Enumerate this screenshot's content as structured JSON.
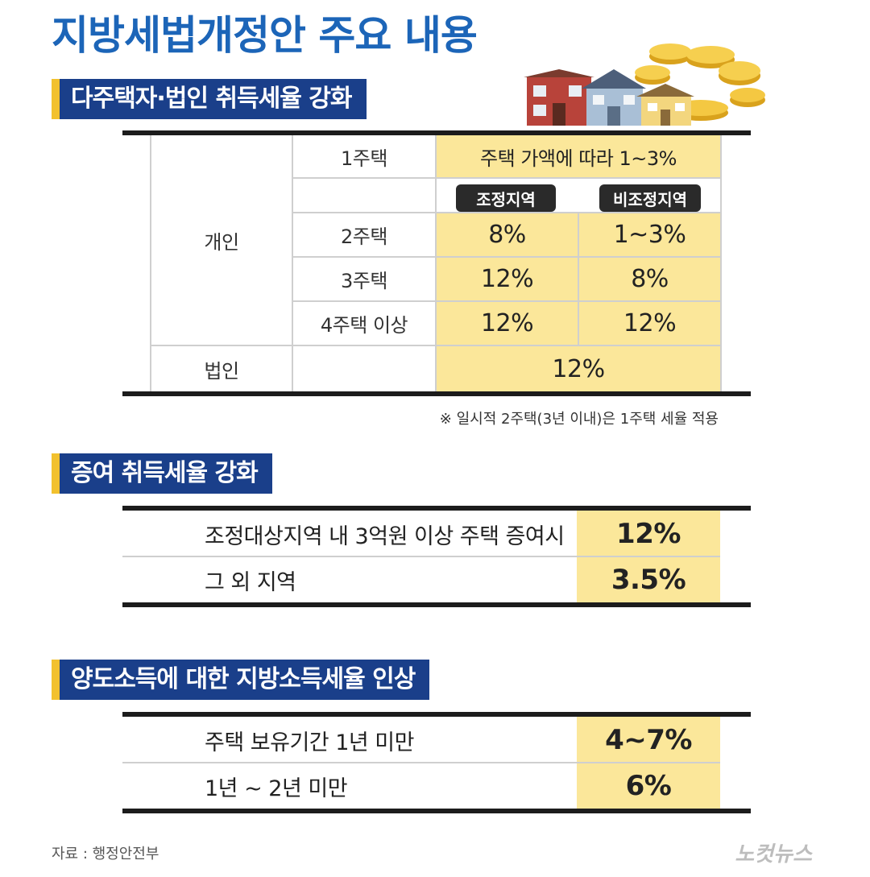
{
  "title": "지방세법개정안 주요 내용",
  "section1": {
    "heading": "다주택자·법인 취득세율 강화",
    "row_labels": {
      "individual": "개인",
      "corporate": "법인",
      "one_house": "1주택",
      "two_houses": "2주택",
      "three_houses": "3주택",
      "four_plus": "4주택 이상"
    },
    "one_house_rate": "주택 가액에 따라 1~3%",
    "col_headers": {
      "adjusted": "조정지역",
      "non_adjusted": "비조정지역"
    },
    "rates": {
      "two": {
        "adjusted": "8%",
        "non_adjusted": "1~3%"
      },
      "three": {
        "adjusted": "12%",
        "non_adjusted": "8%"
      },
      "four_plus": {
        "adjusted": "12%",
        "non_adjusted": "12%"
      },
      "corporate": "12%"
    },
    "note": "※ 일시적 2주택(3년 이내)은 1주택 세율 적용"
  },
  "section2": {
    "heading": "증여 취득세율 강화",
    "rows": [
      {
        "label": "조정대상지역 내 3억원 이상 주택 증여시",
        "value": "12%"
      },
      {
        "label": "그 외 지역",
        "value": "3.5%"
      }
    ]
  },
  "section3": {
    "heading": "양도소득에 대한 지방소득세율 인상",
    "rows": [
      {
        "label": "주택 보유기간 1년 미만",
        "value": "4~7%"
      },
      {
        "label": "1년 ~ 2년 미만",
        "value": "6%"
      }
    ]
  },
  "footer": {
    "source": "자료 : 행정안전부",
    "logo": "노컷뉴스"
  },
  "colors": {
    "title_blue": "#1c65b8",
    "section_navy": "#1a3f8a",
    "accent_yellow": "#f2c12e",
    "cell_yellow": "#fbe79a"
  }
}
